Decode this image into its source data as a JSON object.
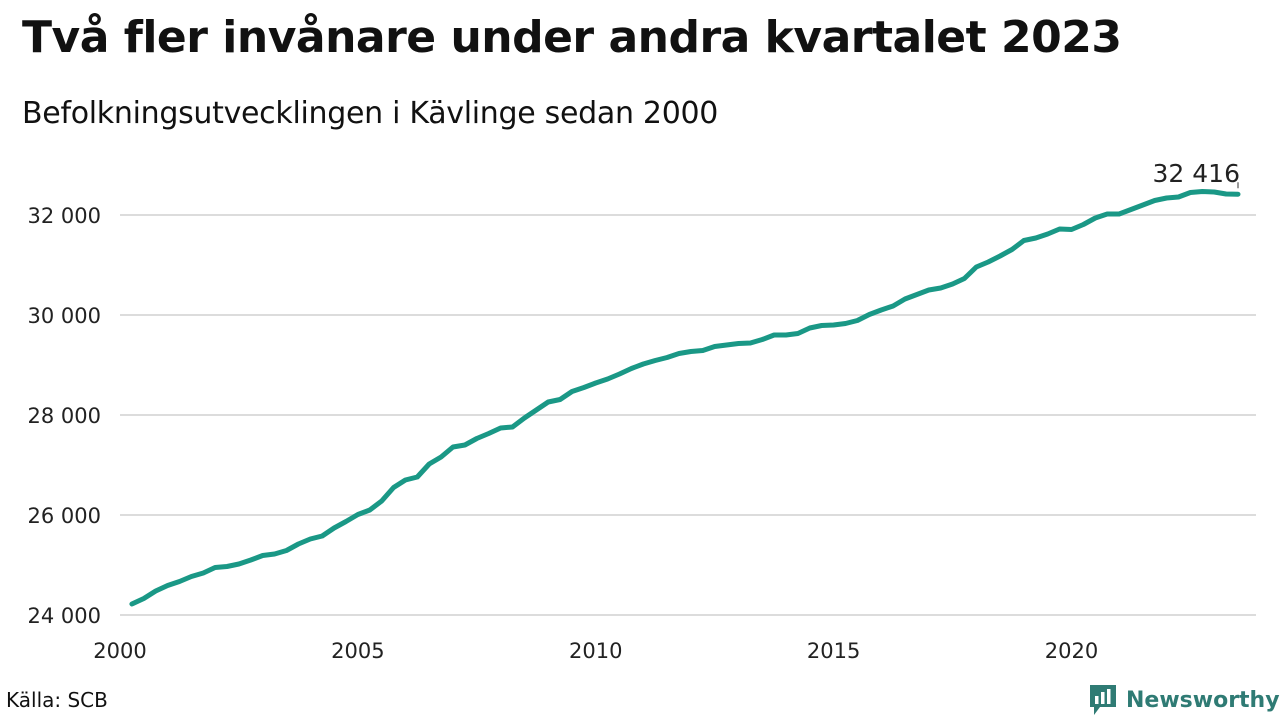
{
  "title": "Två fler invånare under andra kvartalet 2023",
  "subtitle": "Befolkningsutvecklingen i Kävlinge sedan 2000",
  "source": "Källa: SCB",
  "brand": {
    "name": "Newsworthy",
    "logo_icon": "newsworthy-bar-chart-icon"
  },
  "colors": {
    "line": "#1a9886",
    "brand": "#2f7b74",
    "grid": "#dcdcdc"
  },
  "chart_data": {
    "type": "line",
    "xlim": [
      2000,
      2023.5
    ],
    "ylim": [
      24000,
      32500
    ],
    "x_ticks": [
      2000,
      2005,
      2010,
      2015,
      2020
    ],
    "x_tick_labels": [
      "2000",
      "2005",
      "2010",
      "2015",
      "2020"
    ],
    "y_ticks": [
      24000,
      26000,
      28000,
      30000,
      32000
    ],
    "y_tick_labels": [
      "24 000",
      "26 000",
      "28 000",
      "30 000",
      "32 000"
    ],
    "grid": "horizontal",
    "end_label": "32 416",
    "series": [
      {
        "x": [
          2000.25,
          2000.5,
          2000.75,
          2001,
          2001.25,
          2001.5,
          2001.75,
          2002,
          2002.25,
          2002.5,
          2002.75,
          2003,
          2003.25,
          2003.5,
          2003.75,
          2004,
          2004.25,
          2004.5,
          2004.75,
          2005,
          2005.25,
          2005.5,
          2005.75,
          2006,
          2006.25,
          2006.5,
          2006.75,
          2007,
          2007.25,
          2007.5,
          2007.75,
          2008,
          2008.25,
          2008.5,
          2008.75,
          2009,
          2009.25,
          2009.5,
          2009.75,
          2010,
          2010.25,
          2010.5,
          2010.75,
          2011,
          2011.25,
          2011.5,
          2011.75,
          2012,
          2012.25,
          2012.5,
          2012.75,
          2013,
          2013.25,
          2013.5,
          2013.75,
          2014,
          2014.25,
          2014.5,
          2014.75,
          2015,
          2015.25,
          2015.5,
          2015.75,
          2016,
          2016.25,
          2016.5,
          2016.75,
          2017,
          2017.25,
          2017.5,
          2017.75,
          2018,
          2018.25,
          2018.5,
          2018.75,
          2019,
          2019.25,
          2019.5,
          2019.75,
          2020,
          2020.25,
          2020.5,
          2020.75,
          2021,
          2021.25,
          2021.5,
          2021.75,
          2022,
          2022.25,
          2022.5,
          2022.75,
          2023,
          2023.25,
          2023.5
        ],
        "y": [
          24220,
          24330,
          24480,
          24590,
          24670,
          24770,
          24840,
          24950,
          24970,
          25020,
          25100,
          25190,
          25220,
          25290,
          25420,
          25520,
          25580,
          25740,
          25870,
          26010,
          26100,
          26280,
          26550,
          26700,
          26760,
          27020,
          27160,
          27360,
          27400,
          27530,
          27630,
          27740,
          27760,
          27940,
          28100,
          28260,
          28310,
          28470,
          28550,
          28640,
          28720,
          28820,
          28930,
          29020,
          29090,
          29150,
          29230,
          29270,
          29290,
          29370,
          29400,
          29430,
          29440,
          29510,
          29600,
          29600,
          29630,
          29740,
          29790,
          29800,
          29830,
          29890,
          30010,
          30100,
          30180,
          30320,
          30410,
          30500,
          30540,
          30620,
          30730,
          30960,
          31060,
          31180,
          31310,
          31490,
          31540,
          31620,
          31720,
          31710,
          31810,
          31940,
          32020,
          32020,
          32110,
          32200,
          32290,
          32340,
          32360,
          32450,
          32470,
          32460,
          32420,
          32416
        ]
      }
    ]
  }
}
